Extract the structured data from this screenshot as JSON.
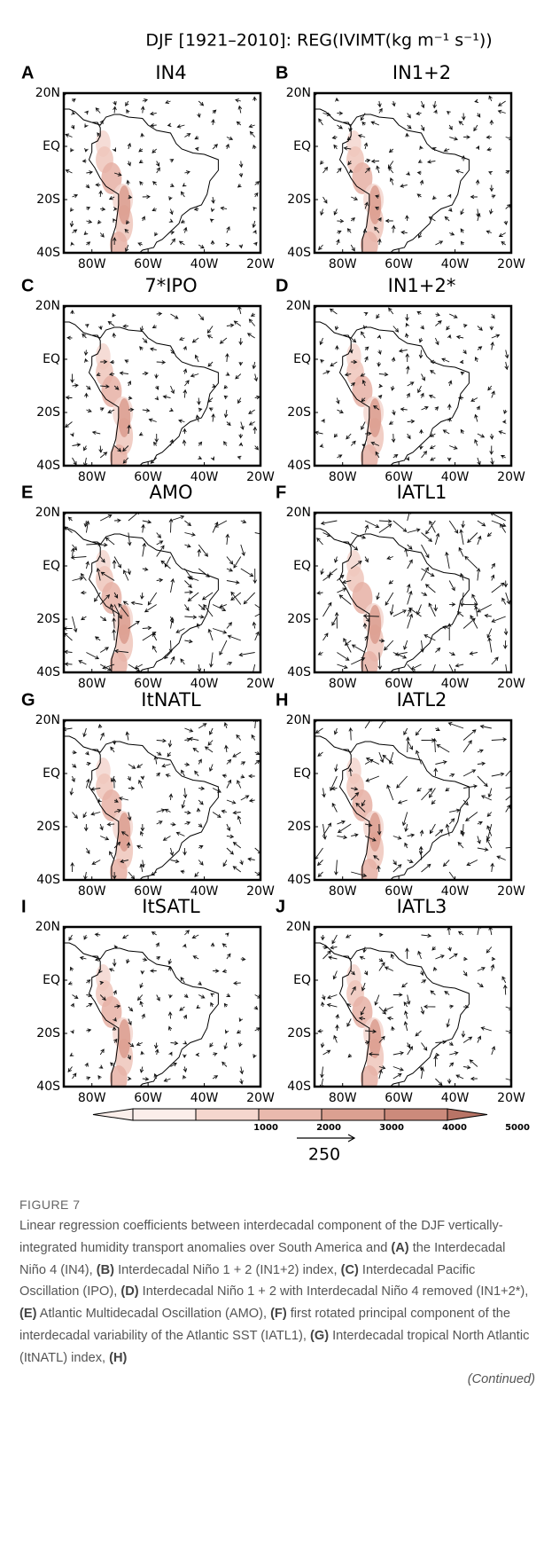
{
  "figure": {
    "title": "DJF [1921–2010]: REG(IVIMT(kg m⁻¹ s⁻¹))",
    "panels": [
      {
        "letter": "A",
        "title": "IN4"
      },
      {
        "letter": "B",
        "title": "IN1+2"
      },
      {
        "letter": "C",
        "title": "7*IPO"
      },
      {
        "letter": "D",
        "title": "IN1+2*"
      },
      {
        "letter": "E",
        "title": "AMO"
      },
      {
        "letter": "F",
        "title": "IATL1"
      },
      {
        "letter": "G",
        "title": "ItNATL"
      },
      {
        "letter": "H",
        "title": "IATL2"
      },
      {
        "letter": "I",
        "title": "ItSATL"
      },
      {
        "letter": "J",
        "title": "IATL3"
      }
    ],
    "lat_labels": [
      "20N",
      "EQ",
      "20S",
      "40S"
    ],
    "lon_labels": [
      "80W",
      "60W",
      "40W",
      "20W"
    ],
    "colorbar_ticks": [
      1000,
      2000,
      3000,
      4000,
      5000
    ],
    "reference_arrow": 250
  },
  "caption": {
    "label": "FIGURE 7",
    "runs": [
      "Linear regression coefficients between interdecadal component of the DJF vertically-integrated humidity transport anomalies over South America and ",
      "(A)",
      " the Interdecadal Niño 4 (IN4), ",
      "(B)",
      " Interdecadal Niño 1 + 2 (IN1+2) index, ",
      "(C)",
      " Interdecadal Pacific Oscillation (IPO), ",
      "(D)",
      " Interdecadal Niño 1 + 2 with Interdecadal Niño 4 removed (IN1+2*), ",
      "(E)",
      " Atlantic Multidecadal Oscillation (AMO), ",
      "(F)",
      " first rotated principal component of the interdecadal variability of the Atlantic SST (IATL1), ",
      "(G)",
      " Interdecadal tropical North Atlantic (ItNATL) index, ",
      "(H)"
    ],
    "continued": "(Continued)"
  }
}
